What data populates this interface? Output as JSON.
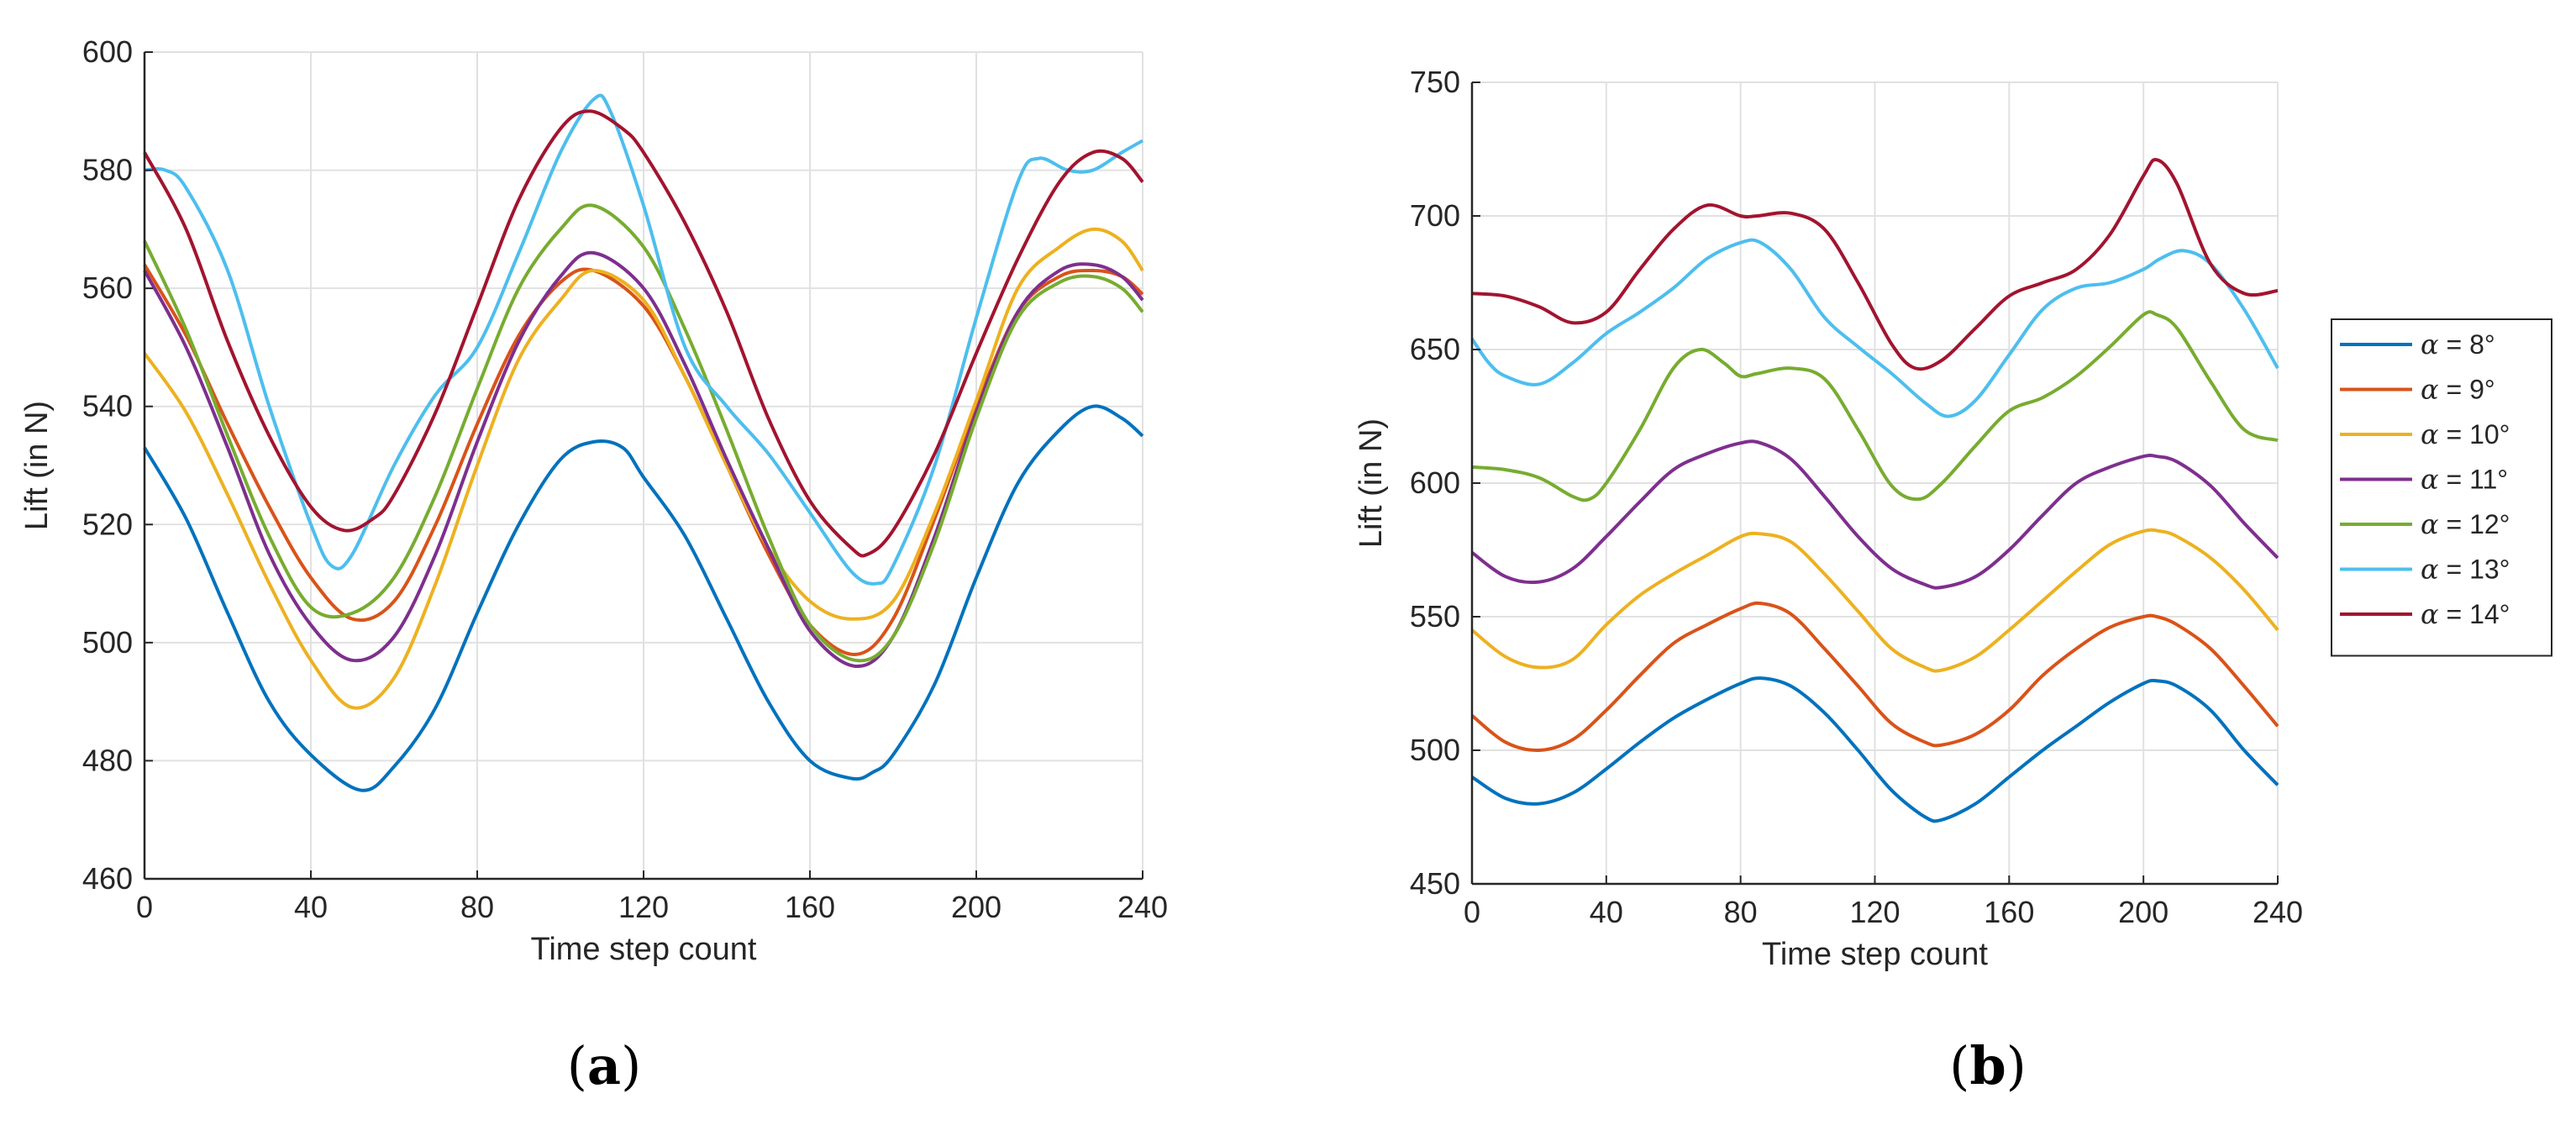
{
  "chart_data": [
    {
      "type": "line",
      "panel_label": "a",
      "xlabel": "Time step count",
      "ylabel": "Lift (in N)",
      "xlim": [
        0,
        240
      ],
      "ylim": [
        460,
        600
      ],
      "xticks": [
        0,
        40,
        80,
        120,
        160,
        200,
        240
      ],
      "yticks": [
        460,
        480,
        500,
        520,
        540,
        560,
        580,
        600
      ],
      "grid": true,
      "series": [
        {
          "name": "α = 8°",
          "color": "#0072BD",
          "x": [
            0,
            10,
            20,
            30,
            40,
            52,
            60,
            70,
            80,
            90,
            100,
            108,
            115,
            120,
            130,
            140,
            150,
            160,
            170,
            175,
            180,
            190,
            200,
            210,
            220,
            228,
            235,
            240
          ],
          "y": [
            533,
            521,
            505,
            490,
            481,
            475,
            479,
            489,
            505,
            520,
            531,
            534,
            533,
            528,
            518,
            504,
            490,
            480,
            477,
            478,
            481,
            493,
            511,
            527,
            536,
            540,
            538,
            535
          ]
        },
        {
          "name": "α = 9°",
          "color": "#D95319",
          "x": [
            0,
            10,
            20,
            30,
            40,
            50,
            60,
            70,
            80,
            90,
            100,
            108,
            120,
            130,
            140,
            150,
            160,
            171,
            180,
            190,
            200,
            210,
            220,
            228,
            235,
            240
          ],
          "y": [
            564,
            552,
            537,
            523,
            511,
            504,
            507,
            520,
            537,
            552,
            561,
            563,
            557,
            545,
            530,
            515,
            503,
            498,
            504,
            521,
            540,
            556,
            562,
            563,
            562,
            559
          ]
        },
        {
          "name": "α = 10°",
          "color": "#EDB120",
          "x": [
            0,
            10,
            20,
            30,
            40,
            50,
            60,
            70,
            80,
            90,
            100,
            108,
            120,
            130,
            140,
            150,
            160,
            170,
            180,
            190,
            200,
            210,
            220,
            228,
            235,
            240
          ],
          "y": [
            549,
            539,
            525,
            510,
            497,
            489,
            494,
            510,
            530,
            548,
            558,
            563,
            558,
            545,
            530,
            516,
            507,
            504,
            507,
            522,
            541,
            560,
            567,
            570,
            568,
            563
          ]
        },
        {
          "name": "α = 11°",
          "color": "#7E2F8E",
          "x": [
            0,
            10,
            20,
            30,
            40,
            50,
            60,
            70,
            80,
            90,
            100,
            108,
            120,
            130,
            140,
            150,
            160,
            171,
            180,
            190,
            200,
            210,
            220,
            228,
            235,
            240
          ],
          "y": [
            563,
            550,
            533,
            515,
            503,
            497,
            501,
            515,
            534,
            551,
            562,
            566,
            560,
            547,
            531,
            516,
            502,
            496,
            501,
            518,
            539,
            556,
            563,
            564,
            562,
            558
          ]
        },
        {
          "name": "α = 12°",
          "color": "#77AC30",
          "x": [
            0,
            10,
            20,
            30,
            40,
            50,
            60,
            70,
            80,
            90,
            100,
            108,
            120,
            130,
            140,
            150,
            160,
            171,
            180,
            190,
            200,
            210,
            220,
            228,
            235,
            240
          ],
          "y": [
            568,
            553,
            535,
            518,
            506,
            505,
            511,
            525,
            543,
            560,
            570,
            574,
            567,
            553,
            536,
            518,
            503,
            497,
            501,
            517,
            538,
            555,
            561,
            562,
            560,
            556
          ]
        },
        {
          "name": "α = 13°",
          "color": "#4DBEEE",
          "x": [
            0,
            5,
            10,
            20,
            30,
            40,
            45,
            50,
            60,
            70,
            80,
            90,
            100,
            108,
            112,
            120,
            130,
            140,
            150,
            160,
            170,
            176,
            180,
            190,
            200,
            210,
            215,
            222,
            228,
            235,
            240
          ],
          "y": [
            580,
            580,
            577,
            563,
            540,
            520,
            513,
            515,
            530,
            542,
            550,
            566,
            583,
            592,
            590,
            574,
            550,
            540,
            532,
            522,
            512,
            510,
            513,
            530,
            555,
            578,
            582,
            580,
            580,
            583,
            585
          ]
        },
        {
          "name": "α = 14°",
          "color": "#A2142F",
          "x": [
            0,
            10,
            20,
            30,
            40,
            48,
            55,
            60,
            70,
            80,
            90,
            100,
            107,
            115,
            120,
            130,
            140,
            150,
            160,
            170,
            174,
            180,
            190,
            200,
            210,
            220,
            228,
            235,
            240
          ],
          "y": [
            583,
            570,
            551,
            535,
            523,
            519,
            521,
            525,
            539,
            557,
            575,
            587,
            590,
            587,
            583,
            571,
            556,
            538,
            524,
            516,
            515,
            519,
            532,
            549,
            565,
            578,
            583,
            582,
            578
          ]
        }
      ]
    },
    {
      "type": "line",
      "panel_label": "b",
      "xlabel": "Time step count",
      "ylabel": "Lift (in N)",
      "xlim": [
        0,
        240
      ],
      "ylim": [
        450,
        750
      ],
      "xticks": [
        0,
        40,
        80,
        120,
        160,
        200,
        240
      ],
      "yticks": [
        450,
        500,
        550,
        600,
        650,
        700,
        750
      ],
      "grid": true,
      "legend_position": "outside-right",
      "series": [
        {
          "name": "α = 8°",
          "color": "#0072BD",
          "x": [
            0,
            10,
            20,
            30,
            40,
            50,
            60,
            70,
            80,
            86,
            95,
            105,
            115,
            125,
            135,
            140,
            150,
            160,
            170,
            180,
            190,
            200,
            204,
            210,
            220,
            230,
            240
          ],
          "y": [
            490,
            482,
            480,
            484,
            493,
            503,
            512,
            519,
            525,
            527,
            524,
            514,
            500,
            485,
            475,
            474,
            480,
            490,
            500,
            509,
            518,
            525,
            526,
            524,
            515,
            500,
            487
          ]
        },
        {
          "name": "α = 9°",
          "color": "#D95319",
          "x": [
            0,
            10,
            20,
            30,
            40,
            50,
            60,
            70,
            80,
            86,
            95,
            105,
            115,
            125,
            135,
            140,
            150,
            160,
            170,
            180,
            190,
            200,
            204,
            210,
            220,
            230,
            240
          ],
          "y": [
            513,
            503,
            500,
            504,
            515,
            528,
            540,
            547,
            553,
            555,
            551,
            538,
            524,
            510,
            503,
            502,
            506,
            515,
            528,
            538,
            546,
            550,
            550,
            547,
            538,
            524,
            509
          ]
        },
        {
          "name": "α = 10°",
          "color": "#EDB120",
          "x": [
            0,
            10,
            20,
            30,
            40,
            50,
            60,
            70,
            80,
            86,
            95,
            105,
            115,
            125,
            135,
            140,
            150,
            160,
            170,
            180,
            190,
            200,
            205,
            210,
            220,
            230,
            240
          ],
          "y": [
            545,
            535,
            531,
            534,
            547,
            558,
            566,
            573,
            580,
            581,
            578,
            566,
            552,
            538,
            531,
            530,
            535,
            545,
            556,
            567,
            577,
            582,
            582,
            580,
            572,
            560,
            545
          ]
        },
        {
          "name": "α = 11°",
          "color": "#7E2F8E",
          "x": [
            0,
            10,
            20,
            30,
            40,
            50,
            60,
            70,
            80,
            86,
            95,
            105,
            115,
            125,
            135,
            140,
            150,
            160,
            170,
            180,
            190,
            200,
            204,
            210,
            220,
            230,
            240
          ],
          "y": [
            574,
            565,
            563,
            568,
            580,
            593,
            605,
            611,
            615,
            615,
            609,
            595,
            580,
            568,
            562,
            561,
            565,
            575,
            588,
            600,
            606,
            610,
            610,
            608,
            599,
            585,
            572
          ]
        },
        {
          "name": "α = 12°",
          "color": "#77AC30",
          "x": [
            0,
            10,
            20,
            30,
            35,
            40,
            50,
            60,
            68,
            75,
            80,
            85,
            95,
            105,
            115,
            125,
            133,
            140,
            150,
            160,
            170,
            180,
            190,
            200,
            204,
            210,
            220,
            230,
            240
          ],
          "y": [
            606,
            605,
            602,
            595,
            594,
            600,
            620,
            643,
            650,
            645,
            640,
            641,
            643,
            639,
            620,
            599,
            594,
            600,
            614,
            627,
            632,
            640,
            651,
            663,
            663,
            658,
            638,
            620,
            616
          ]
        },
        {
          "name": "α = 13°",
          "color": "#4DBEEE",
          "x": [
            0,
            5,
            10,
            20,
            30,
            40,
            50,
            60,
            70,
            80,
            86,
            95,
            105,
            115,
            125,
            135,
            142,
            150,
            160,
            170,
            180,
            190,
            200,
            205,
            212,
            220,
            230,
            240
          ],
          "y": [
            654,
            645,
            640,
            637,
            645,
            656,
            664,
            673,
            684,
            690,
            690,
            680,
            662,
            651,
            641,
            630,
            625,
            631,
            648,
            665,
            673,
            675,
            680,
            684,
            687,
            682,
            665,
            643
          ]
        },
        {
          "name": "α = 14°",
          "color": "#A2142F",
          "x": [
            0,
            10,
            20,
            30,
            40,
            50,
            60,
            70,
            80,
            85,
            95,
            105,
            115,
            125,
            132,
            140,
            150,
            160,
            170,
            180,
            190,
            200,
            204,
            210,
            220,
            230,
            240
          ],
          "y": [
            671,
            670,
            666,
            660,
            664,
            680,
            695,
            704,
            700,
            700,
            701,
            695,
            675,
            652,
            643,
            646,
            658,
            670,
            675,
            680,
            693,
            715,
            721,
            712,
            682,
            671,
            672
          ]
        }
      ]
    }
  ]
}
